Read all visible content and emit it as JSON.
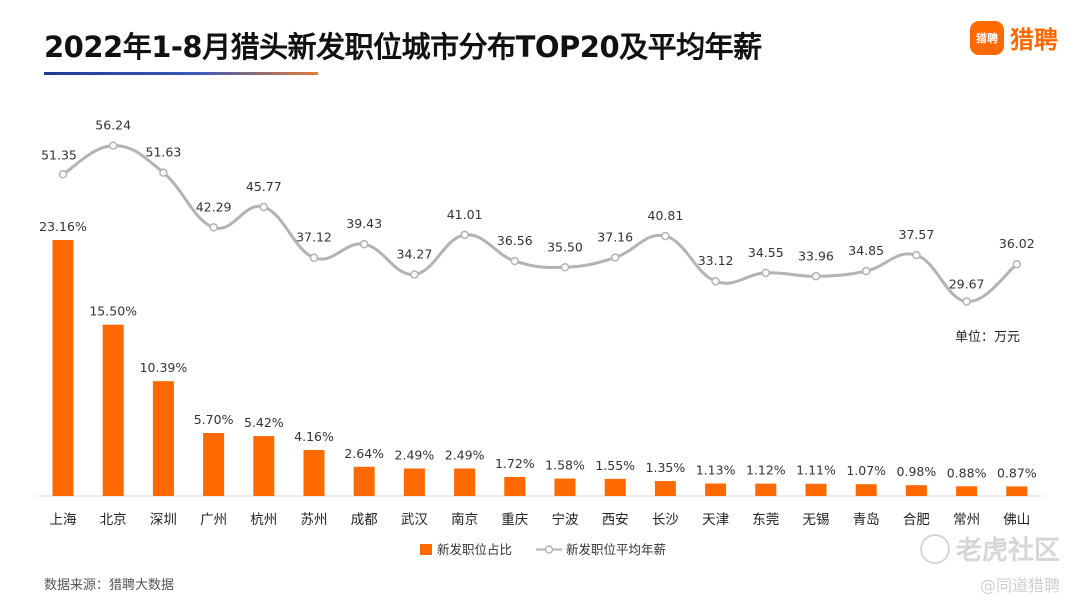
{
  "title": "2022年1-8月猎头新发职位城市分布TOP20及平均年薪",
  "logo": {
    "badge": "猎聘",
    "text": "猎聘"
  },
  "source": "数据来源：猎聘大数据",
  "watermark": {
    "main": "老虎社区",
    "sub": "@同道猎聘"
  },
  "chart_data": {
    "type": "bar+line",
    "categories": [
      "上海",
      "北京",
      "深圳",
      "广州",
      "杭州",
      "苏州",
      "成都",
      "武汉",
      "南京",
      "重庆",
      "宁波",
      "西安",
      "长沙",
      "天津",
      "东莞",
      "无锡",
      "青岛",
      "合肥",
      "常州",
      "佛山"
    ],
    "series": [
      {
        "name": "新发职位占比",
        "type": "bar",
        "color": "#ff6a00",
        "values": [
          23.16,
          15.5,
          10.39,
          5.7,
          5.42,
          4.16,
          2.64,
          2.49,
          2.49,
          1.72,
          1.58,
          1.55,
          1.35,
          1.13,
          1.12,
          1.11,
          1.07,
          0.98,
          0.88,
          0.87
        ],
        "labels": [
          "23.16%",
          "15.50%",
          "10.39%",
          "5.70%",
          "5.42%",
          "4.16%",
          "2.64%",
          "2.49%",
          "2.49%",
          "1.72%",
          "1.58%",
          "1.55%",
          "1.35%",
          "1.13%",
          "1.12%",
          "1.11%",
          "1.07%",
          "0.98%",
          "0.88%",
          "0.87%"
        ]
      },
      {
        "name": "新发职位平均年薪",
        "type": "line",
        "color": "#b3b3b3",
        "values": [
          51.35,
          56.24,
          51.63,
          42.29,
          45.77,
          37.12,
          39.43,
          34.27,
          41.01,
          36.56,
          35.5,
          37.16,
          40.81,
          33.12,
          34.55,
          33.96,
          34.85,
          37.57,
          29.67,
          36.02
        ],
        "labels": [
          "51.35",
          "56.24",
          "51.63",
          "42.29",
          "45.77",
          "37.12",
          "39.43",
          "34.27",
          "41.01",
          "36.56",
          "35.50",
          "37.16",
          "40.81",
          "33.12",
          "34.55",
          "33.96",
          "34.85",
          "37.57",
          "29.67",
          "36.02"
        ]
      }
    ],
    "unit_label": "单位：万元",
    "legend_position": "bottom-center"
  }
}
